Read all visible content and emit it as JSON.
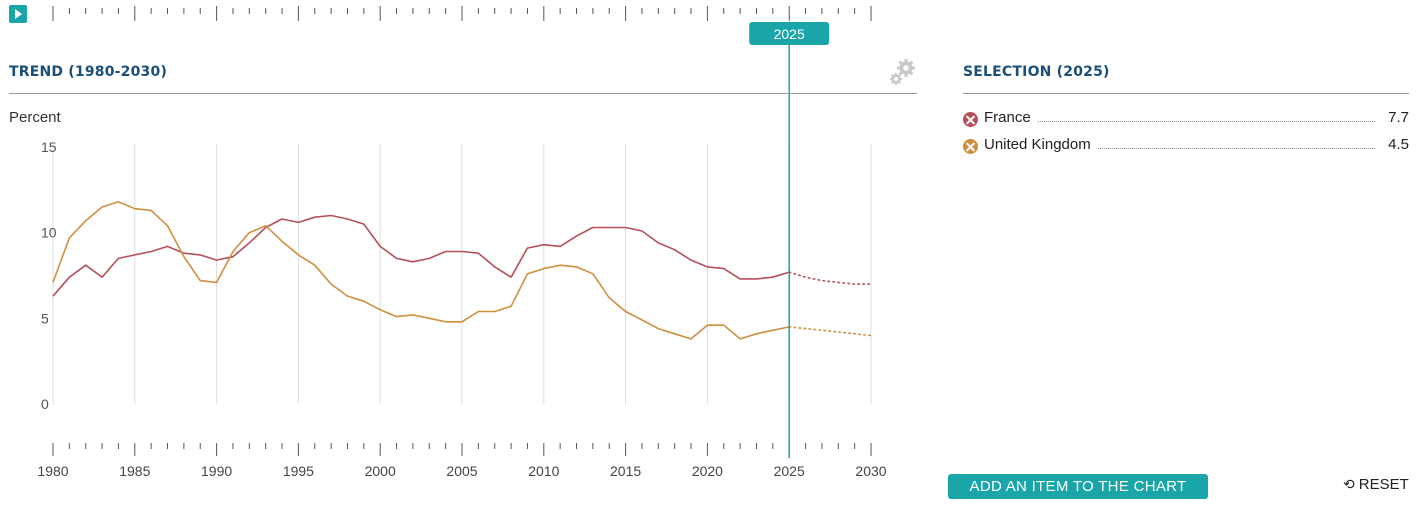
{
  "timeline": {
    "start_year": 1980,
    "end_year": 2030,
    "selected_year": "2025",
    "play_icon": "play-icon"
  },
  "trend": {
    "title": "TREND (1980-2030)",
    "settings_icon": "gears-icon"
  },
  "selection": {
    "title": "SELECTION (2025)",
    "items": [
      {
        "name": "France",
        "value": "7.7",
        "color": "#b5505a",
        "icon": "remove-icon"
      },
      {
        "name": "United Kingdom",
        "value": "4.5",
        "color": "#cf8f3f",
        "icon": "remove-icon"
      }
    ]
  },
  "chart_data": {
    "type": "line",
    "ylabel": "Percent",
    "ylim": [
      0,
      15
    ],
    "yticks": [
      "15",
      "10",
      "5",
      "0"
    ],
    "xlim": [
      1980,
      2030
    ],
    "xticks": [
      "1980",
      "1985",
      "1990",
      "1995",
      "2000",
      "2005",
      "2010",
      "2015",
      "2020",
      "2025",
      "2030"
    ],
    "actual_through": 2025,
    "grid": true,
    "x": [
      1980,
      1981,
      1982,
      1983,
      1984,
      1985,
      1986,
      1987,
      1988,
      1989,
      1990,
      1991,
      1992,
      1993,
      1994,
      1995,
      1996,
      1997,
      1998,
      1999,
      2000,
      2001,
      2002,
      2003,
      2004,
      2005,
      2006,
      2007,
      2008,
      2009,
      2010,
      2011,
      2012,
      2013,
      2014,
      2015,
      2016,
      2017,
      2018,
      2019,
      2020,
      2021,
      2022,
      2023,
      2024,
      2025,
      2026,
      2027,
      2028,
      2029,
      2030
    ],
    "series": [
      {
        "name": "France",
        "color": "#b5505a",
        "values": [
          6.3,
          7.4,
          8.1,
          7.4,
          8.5,
          8.7,
          8.9,
          9.2,
          8.8,
          8.7,
          8.4,
          8.6,
          9.4,
          10.3,
          10.8,
          10.6,
          10.9,
          11.0,
          10.8,
          10.5,
          9.2,
          8.5,
          8.3,
          8.5,
          8.9,
          8.9,
          8.8,
          8.0,
          7.4,
          9.1,
          9.3,
          9.2,
          9.8,
          10.3,
          10.3,
          10.3,
          10.1,
          9.4,
          9.0,
          8.4,
          8.0,
          7.9,
          7.3,
          7.3,
          7.4,
          7.7,
          7.4,
          7.2,
          7.1,
          7.0,
          7.0
        ]
      },
      {
        "name": "United Kingdom",
        "color": "#cf8f3f",
        "values": [
          7.1,
          9.7,
          10.7,
          11.5,
          11.8,
          11.4,
          11.3,
          10.4,
          8.6,
          7.2,
          7.1,
          8.9,
          10.0,
          10.4,
          9.5,
          8.7,
          8.1,
          7.0,
          6.3,
          6.0,
          5.5,
          5.1,
          5.2,
          5.0,
          4.8,
          4.8,
          5.4,
          5.4,
          5.7,
          7.6,
          7.9,
          8.1,
          8.0,
          7.6,
          6.2,
          5.4,
          4.9,
          4.4,
          4.1,
          3.8,
          4.6,
          4.6,
          3.8,
          4.1,
          4.3,
          4.5,
          4.4,
          4.3,
          4.2,
          4.1,
          4.0
        ]
      }
    ]
  },
  "buttons": {
    "add_label": "ADD AN ITEM TO THE CHART",
    "reset_label": "RESET",
    "reset_icon": "history-icon"
  }
}
